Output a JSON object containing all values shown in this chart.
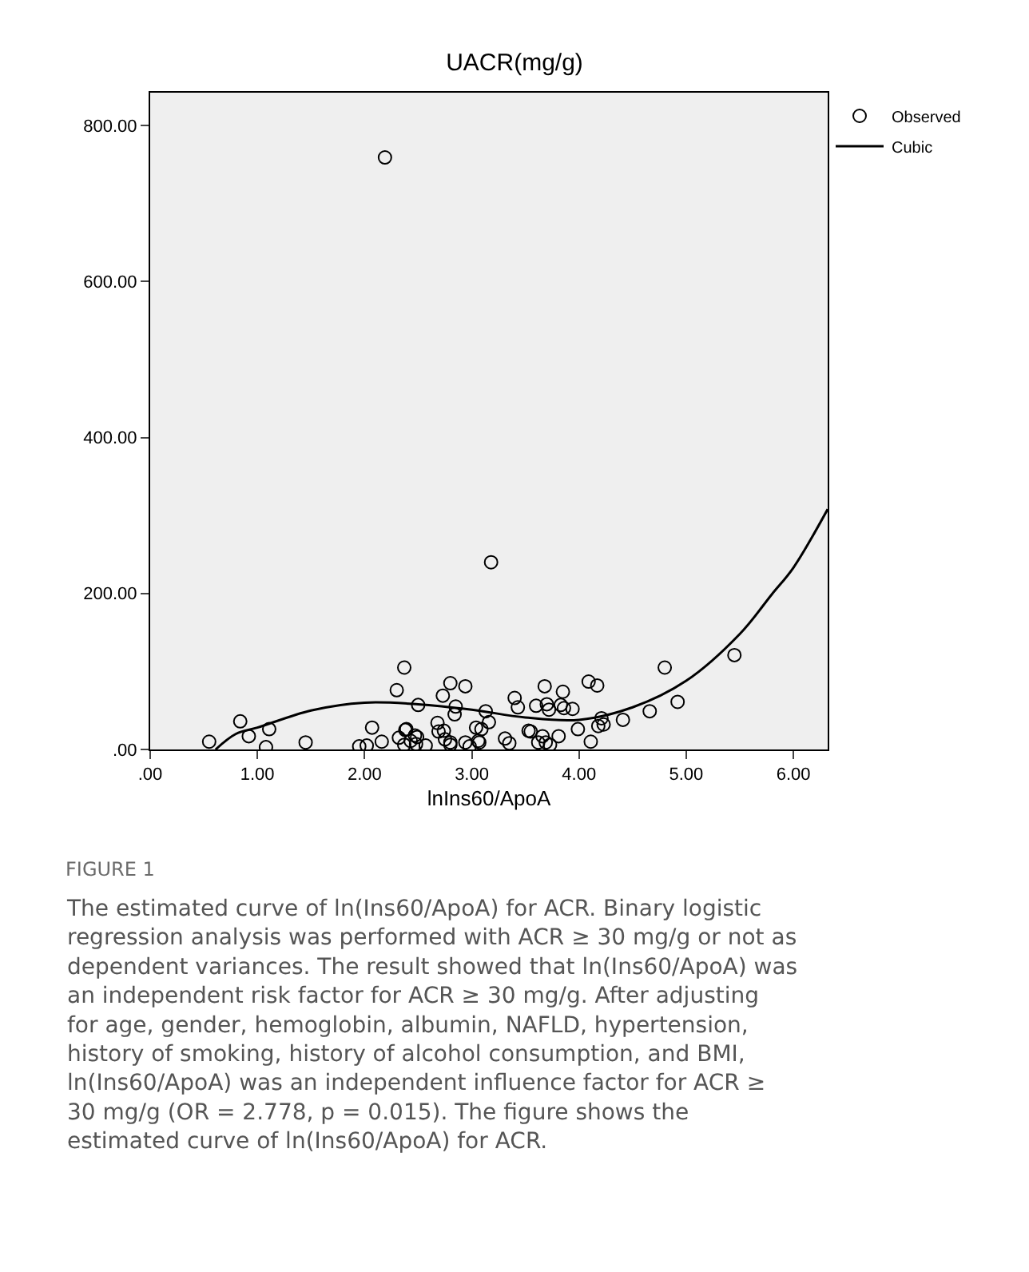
{
  "chart_data": {
    "type": "scatter",
    "title": "UACR(mg/g)",
    "xlabel": "lnIns60/ApoA",
    "xlim": [
      0,
      6.32
    ],
    "ylim": [
      0,
      842
    ],
    "xticks": [
      {
        "value": 0,
        "label": ".00"
      },
      {
        "value": 1,
        "label": "1.00"
      },
      {
        "value": 2,
        "label": "2.00"
      },
      {
        "value": 3,
        "label": "3.00"
      },
      {
        "value": 4,
        "label": "4.00"
      },
      {
        "value": 5,
        "label": "5.00"
      },
      {
        "value": 6,
        "label": "6.00"
      }
    ],
    "yticks": [
      {
        "value": 0,
        "label": ".00"
      },
      {
        "value": 200,
        "label": "200.00"
      },
      {
        "value": 400,
        "label": "400.00"
      },
      {
        "value": 600,
        "label": "600.00"
      },
      {
        "value": 800,
        "label": "800.00"
      }
    ],
    "grid": false,
    "legend": "top right",
    "marker": "circle",
    "series": [
      {
        "name": "Observed",
        "color": "#000000",
        "x": [
          0.55,
          0.84,
          0.92,
          1.08,
          1.11,
          1.45,
          1.95,
          2.02,
          2.07,
          2.16,
          2.19,
          2.3,
          2.32,
          2.37,
          2.37,
          2.38,
          2.39,
          2.43,
          2.47,
          2.48,
          2.49,
          2.5,
          2.57,
          2.68,
          2.69,
          2.73,
          2.74,
          2.75,
          2.8,
          2.8,
          2.8,
          2.85,
          2.84,
          2.94,
          2.94,
          2.98,
          3.04,
          3.06,
          3.07,
          3.09,
          3.13,
          3.16,
          3.18,
          3.31,
          3.35,
          3.4,
          3.43,
          3.53,
          3.55,
          3.6,
          3.62,
          3.66,
          3.68,
          3.7,
          3.69,
          3.72,
          3.73,
          3.81,
          3.83,
          3.85,
          3.86,
          3.94,
          3.99,
          4.09,
          4.11,
          4.17,
          4.18,
          4.21,
          4.23,
          4.41,
          4.66,
          4.8,
          4.92,
          5.45
        ],
        "values": [
          10,
          36,
          17,
          3,
          26,
          9,
          4,
          5,
          28,
          10,
          759,
          76,
          15,
          105,
          6,
          25,
          26,
          11,
          18,
          7,
          16,
          57,
          5,
          34,
          23,
          69,
          24,
          13,
          6,
          85,
          9,
          55,
          45,
          81,
          9,
          4,
          28,
          11,
          9,
          26,
          49,
          35,
          240,
          14,
          8,
          66,
          54,
          24,
          23,
          56,
          9,
          17,
          81,
          58,
          9,
          51,
          6,
          17,
          57,
          74,
          53,
          52,
          26,
          87,
          10,
          82,
          30,
          40,
          32,
          38,
          49,
          105,
          61,
          121
        ]
      },
      {
        "name": "Cubic",
        "type": "line",
        "color": "#000000",
        "marker": "none",
        "line_style": "solid",
        "x": [
          0.61,
          0.8,
          1.0,
          1.5,
          2.0,
          2.5,
          3.0,
          3.5,
          4.0,
          4.5,
          5.0,
          5.5,
          5.8,
          6.0,
          6.32
        ],
        "values": [
          0,
          20,
          28,
          50,
          60,
          58,
          51,
          41,
          38,
          54,
          88,
          148,
          199,
          233,
          308
        ]
      }
    ],
    "annotations": [
      "FIGURE 1",
      "The estimated curve of ln(Ins60/ApoA) for ACR. Binary logistic regression analysis was performed with ACR ≥ 30 mg/g or not as dependent variances. The result showed that ln(Ins60/ApoA) was an independent risk factor for ACR ≥ 30 mg/g. After adjusting for age, gender, hemoglobin, albumin, NAFLD, hypertension, history of smoking, history of alcohol consumption, and BMI, ln(Ins60/ApoA) was an independent influence factor for ACR ≥ 30 mg/g (OR = 2.778, p = 0.015). The figure shows the estimated curve of ln(Ins60/ApoA) for ACR."
    ]
  }
}
